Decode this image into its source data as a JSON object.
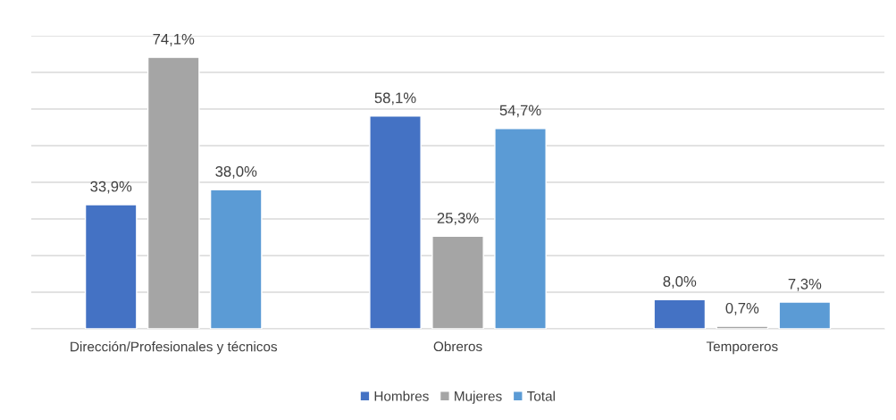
{
  "chart_data": {
    "type": "bar",
    "categories": [
      "Dirección/Profesionales y técnicos",
      "Obreros",
      "Temporeros"
    ],
    "series": [
      {
        "name": "Hombres",
        "color": "#4472c4",
        "values": [
          33.9,
          58.1,
          8.0
        ],
        "value_labels": [
          "33,9%",
          "58,1%",
          "8,0%"
        ]
      },
      {
        "name": "Mujeres",
        "color": "#a5a5a5",
        "values": [
          74.1,
          25.3,
          0.7
        ],
        "value_labels": [
          "74,1%",
          "25,3%",
          "0,7%"
        ]
      },
      {
        "name": "Total",
        "color": "#5b9bd5",
        "values": [
          38.0,
          54.7,
          7.3
        ],
        "value_labels": [
          "38,0%",
          "54,7%",
          "7,3%"
        ]
      }
    ],
    "ylim": [
      0,
      80
    ],
    "yticks": [
      {
        "value": 0,
        "label": null
      },
      {
        "value": 10,
        "label": null
      },
      {
        "value": 20,
        "label": null
      },
      {
        "value": 30,
        "label": null
      },
      {
        "value": 40,
        "label": null
      },
      {
        "value": 50,
        "label": null
      },
      {
        "value": 60,
        "label": null
      },
      {
        "value": 70,
        "label": null
      },
      {
        "value": 80,
        "label": null
      }
    ],
    "tick_labels": "x",
    "grid": "y",
    "legend": "bottom"
  }
}
